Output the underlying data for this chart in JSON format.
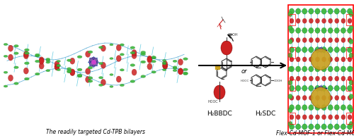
{
  "background_color": "#ffffff",
  "fig_width": 5.0,
  "fig_height": 1.96,
  "dpi": 100,
  "left_label": "The readily targeted Cd-TPB bilayers",
  "right_label": "Flex-Cd-MOF-1 or Flex-Cd-MOF-2",
  "top_label_1": "H₂BBDC",
  "top_label_2": "H₂SDC",
  "or_label": "or",
  "green": "#3db83d",
  "red": "#cc2222",
  "blue": "#3399cc",
  "cyan": "#00aacc",
  "gold": "#c8a020",
  "darkred": "#8b0000",
  "purple": "#7b5ea7",
  "navy": "#003380",
  "dark_green": "#1a7a1a",
  "label_fontsize": 5.5,
  "chem_label_fontsize": 6.5
}
